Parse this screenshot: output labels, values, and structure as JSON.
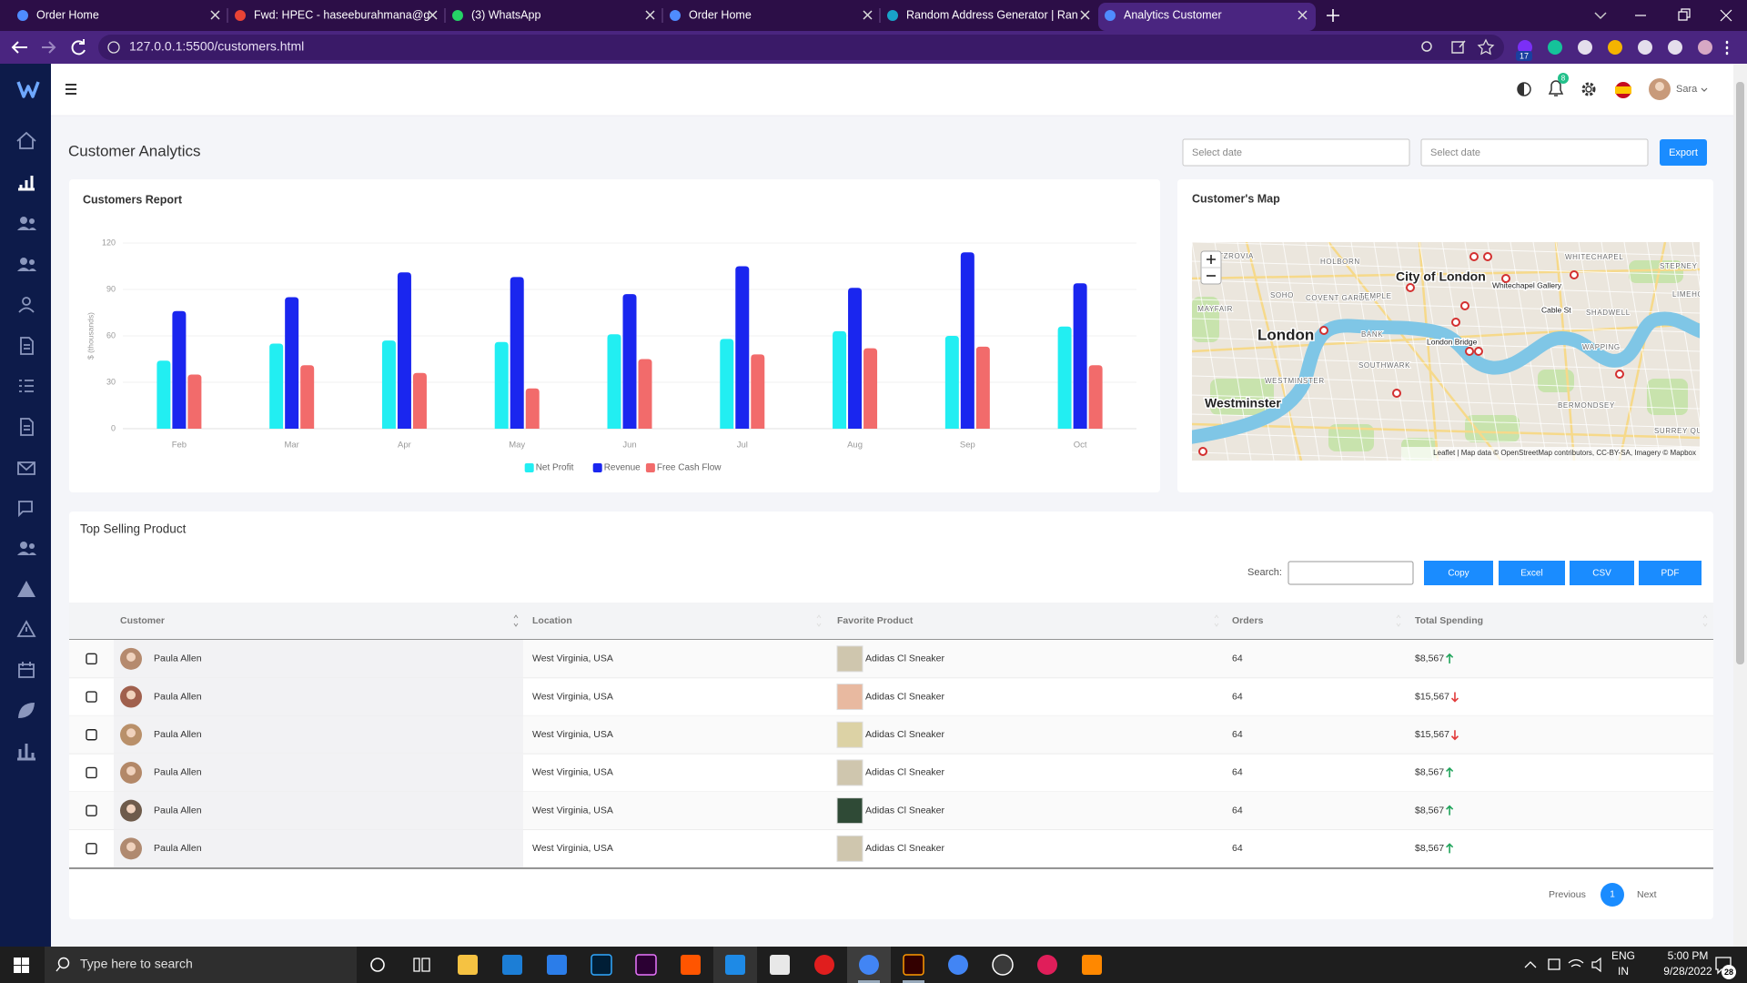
{
  "browser": {
    "tabs": [
      "Order Home",
      "Fwd: HPEC - haseeburahmana@g",
      "(3) WhatsApp",
      "Order Home",
      "Random Address Generator | Ran",
      "Analytics Customer"
    ],
    "url": "127.0.0.1:5500/customers.html",
    "extension_badge": 17
  },
  "header": {
    "notifications": 8,
    "user": "Sara"
  },
  "page_title": "Customer Analytics",
  "filters": {
    "start_placeholder": "Select date",
    "end_placeholder": "Select date",
    "export": "Export"
  },
  "chart_data": {
    "type": "bar",
    "title": "Customers Report",
    "y_label": "$ (thousands)",
    "categories": [
      "Feb",
      "Mar",
      "Apr",
      "May",
      "Jun",
      "Jul",
      "Aug",
      "Sep",
      "Oct"
    ],
    "series": [
      {
        "name": "Net Profit",
        "color": "#22eef2",
        "values": [
          44,
          55,
          57,
          56,
          61,
          58,
          63,
          60,
          66
        ]
      },
      {
        "name": "Revenue",
        "color": "#1a26ef",
        "values": [
          76,
          85,
          101,
          98,
          87,
          105,
          91,
          114,
          94
        ]
      },
      {
        "name": "Free Cash Flow",
        "color": "#f26b6b",
        "values": [
          35,
          41,
          36,
          26,
          45,
          48,
          52,
          53,
          41
        ]
      }
    ],
    "ylim": [
      0,
      120
    ],
    "yticks": [
      0,
      30,
      60,
      90,
      120
    ],
    "grid": true,
    "legend": "bottom"
  },
  "map": {
    "title": "Customer's Map",
    "places": [
      "FITZROVIA",
      "HOLBORN",
      "WHITECHAPEL",
      "STEPNEY",
      "SOHO",
      "COVENT GARDEN",
      "TEMPLE",
      "City of London",
      "Whitechapel Gallery",
      "LIMEHOUSE",
      "MAYFAIR",
      "London",
      "BANK",
      "Cable St",
      "SHADWELL",
      "London Bridge",
      "WAPPING",
      "SOUTHWARK",
      "WESTMINSTER",
      "Westminster",
      "BERMONDSEY",
      "SURREY QUAYS"
    ],
    "attribution": "Leaflet | Map data © OpenStreetMap contributors, CC-BY-SA, Imagery © Mapbox"
  },
  "table": {
    "title": "Top Selling Product",
    "search_label": "Search:",
    "buttons": [
      "Copy",
      "Excel",
      "CSV",
      "PDF"
    ],
    "columns": [
      "Customer",
      "Location",
      "Favorite Product",
      "Orders",
      "Total Spending"
    ],
    "rows": [
      {
        "customer": "Paula Allen",
        "location": "West Virginia, USA",
        "product": "Adidas Cl Sneaker",
        "orders": 64,
        "spending": "$8,567",
        "trend": "up"
      },
      {
        "customer": "Paula Allen",
        "location": "West Virginia, USA",
        "product": "Adidas Cl Sneaker",
        "orders": 64,
        "spending": "$15,567",
        "trend": "down"
      },
      {
        "customer": "Paula Allen",
        "location": "West Virginia, USA",
        "product": "Adidas Cl Sneaker",
        "orders": 64,
        "spending": "$15,567",
        "trend": "down"
      },
      {
        "customer": "Paula Allen",
        "location": "West Virginia, USA",
        "product": "Adidas Cl Sneaker",
        "orders": 64,
        "spending": "$8,567",
        "trend": "up"
      },
      {
        "customer": "Paula Allen",
        "location": "West Virginia, USA",
        "product": "Adidas Cl Sneaker",
        "orders": 64,
        "spending": "$8,567",
        "trend": "up"
      },
      {
        "customer": "Paula Allen",
        "location": "West Virginia, USA",
        "product": "Adidas Cl Sneaker",
        "orders": 64,
        "spending": "$8,567",
        "trend": "up"
      }
    ],
    "pagination": {
      "previous": "Previous",
      "page": 1,
      "next": "Next"
    }
  },
  "taskbar": {
    "search_placeholder": "Type here to search",
    "language": "ENG",
    "region": "IN",
    "time": "5:00 PM",
    "date": "9/28/2022",
    "notifications": 28
  }
}
